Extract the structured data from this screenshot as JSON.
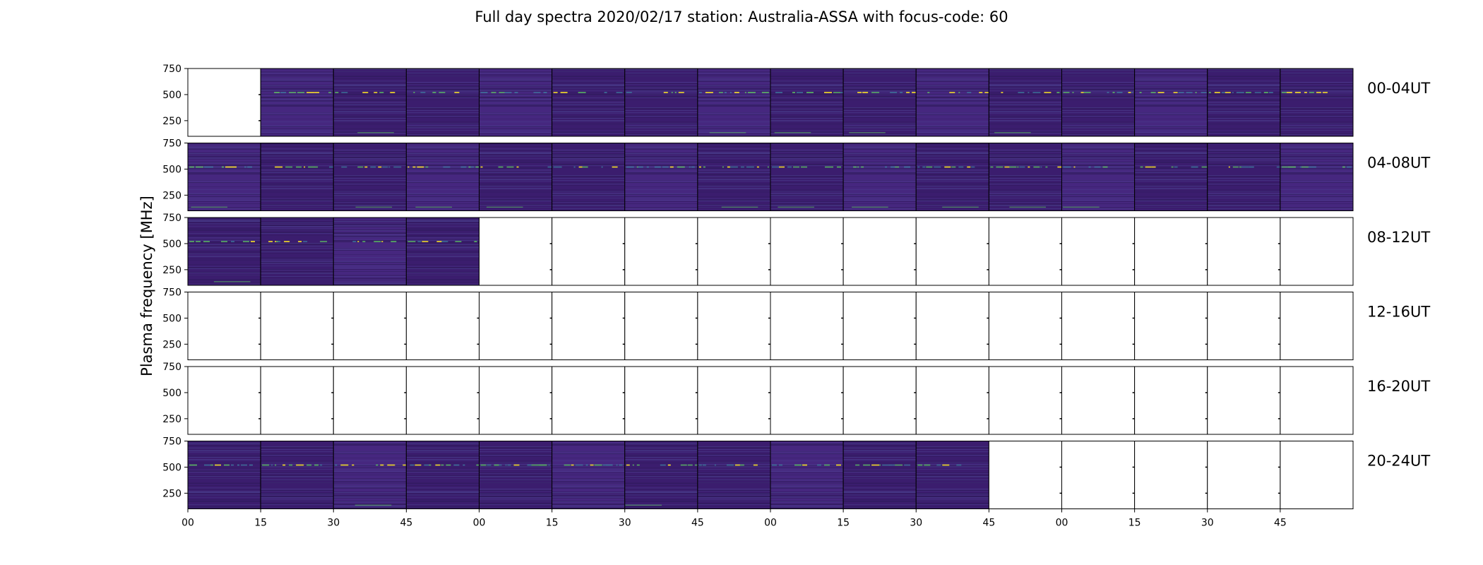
{
  "chart_data": {
    "type": "heatmap",
    "title": "Full day spectra 2020/02/17 station: Australia-ASSA with focus-code: 60",
    "ylabel": "Plasma frequency [MHz]",
    "xlabel": "",
    "ylim": [
      100,
      750
    ],
    "yticks": [
      250,
      500,
      750
    ],
    "xtick_labels": [
      "00",
      "15",
      "30",
      "45",
      "00",
      "15",
      "30",
      "45",
      "00",
      "15",
      "30",
      "45",
      "00",
      "15",
      "30",
      "45"
    ],
    "grid": false,
    "colormap": "viridis",
    "rows": [
      {
        "label": "00-04UT",
        "filled": [
          false,
          true,
          true,
          true,
          true,
          true,
          true,
          true,
          true,
          true,
          true,
          true,
          true,
          true,
          true,
          true
        ]
      },
      {
        "label": "04-08UT",
        "filled": [
          true,
          true,
          true,
          true,
          true,
          true,
          true,
          true,
          true,
          true,
          true,
          true,
          true,
          true,
          true,
          true
        ]
      },
      {
        "label": "08-12UT",
        "filled": [
          true,
          true,
          true,
          true,
          false,
          false,
          false,
          false,
          false,
          false,
          false,
          false,
          false,
          false,
          false,
          false
        ]
      },
      {
        "label": "12-16UT",
        "filled": [
          false,
          false,
          false,
          false,
          false,
          false,
          false,
          false,
          false,
          false,
          false,
          false,
          false,
          false,
          false,
          false
        ]
      },
      {
        "label": "16-20UT",
        "filled": [
          false,
          false,
          false,
          false,
          false,
          false,
          false,
          false,
          false,
          false,
          false,
          false,
          false,
          false,
          false,
          false
        ]
      },
      {
        "label": "20-24UT",
        "filled": [
          true,
          true,
          true,
          true,
          true,
          true,
          true,
          true,
          true,
          true,
          true,
          false,
          false,
          false,
          false,
          false
        ]
      }
    ],
    "colors": {
      "background_low": "#3b1d6e",
      "background_mid": "#46277f",
      "band_high": "#5ec962",
      "band_peak": "#fde725",
      "frame": "#000000"
    }
  }
}
